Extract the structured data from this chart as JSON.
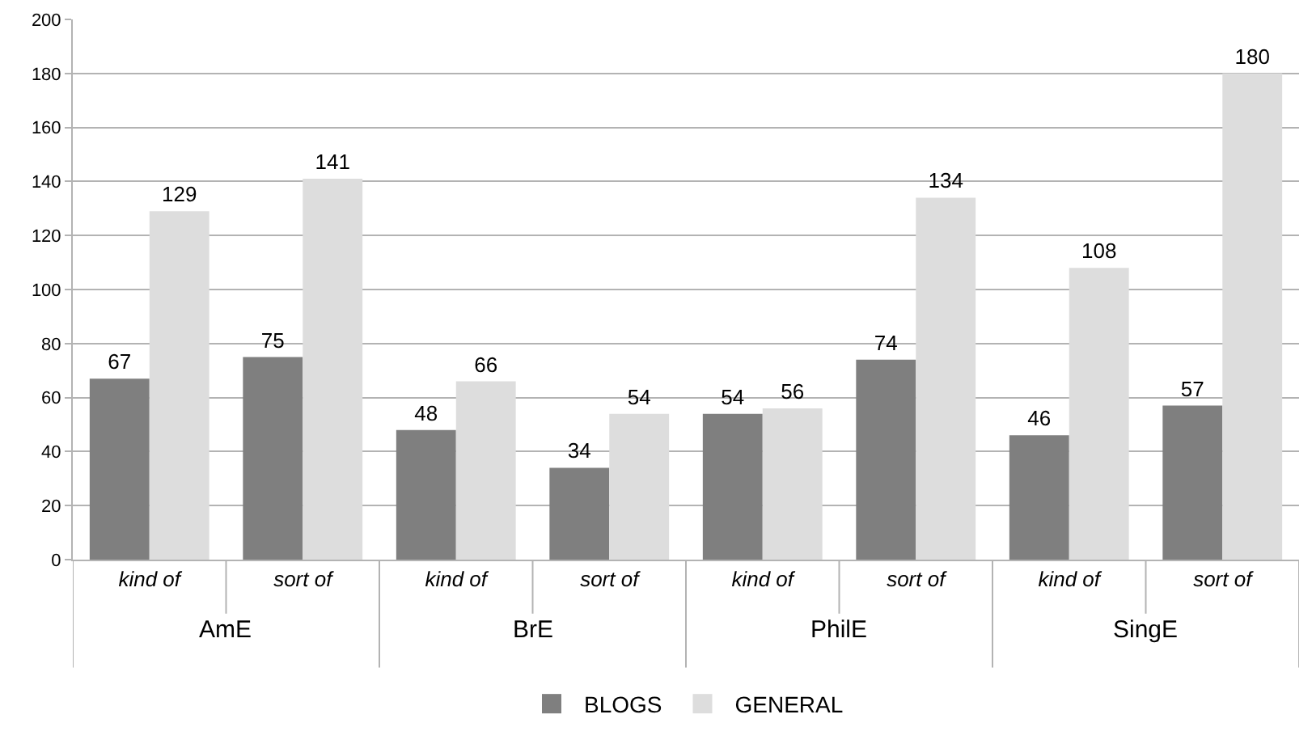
{
  "chart_data": {
    "type": "bar",
    "categories": [
      "kind of",
      "sort of",
      "kind of",
      "sort of",
      "kind of",
      "sort of",
      "kind of",
      "sort of"
    ],
    "series": [
      {
        "name": "BLOGS",
        "color": "#7f7f7f",
        "values": [
          67,
          75,
          48,
          34,
          54,
          74,
          46,
          57
        ]
      },
      {
        "name": "GENERAL",
        "color": "#dddddd",
        "values": [
          129,
          141,
          66,
          54,
          56,
          134,
          108,
          180
        ]
      }
    ],
    "annotations": [
      "AmE",
      "BrE",
      "PhilE",
      "SingE"
    ],
    "ylim": [
      0,
      200
    ],
    "yticks": [
      0,
      20,
      40,
      60,
      80,
      100,
      120,
      140,
      160,
      180,
      200
    ],
    "grid": "y",
    "legend": "bottom",
    "data_labels": true
  }
}
